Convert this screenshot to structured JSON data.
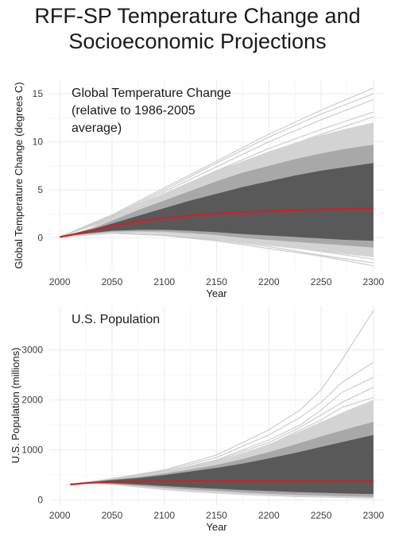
{
  "figure": {
    "title_line1": "RFF-SP Temperature Change and",
    "title_line2": "Socioeconomic Projections"
  },
  "colors": {
    "grid": "#ebebeb",
    "band_outer": "#d3d3d3",
    "band_mid": "#a8a8a8",
    "band_inner": "#595959",
    "trace": "#cccccc",
    "median": "#cc2222"
  },
  "chart_data": [
    {
      "type": "area",
      "title_lines": [
        "Global Temperature Change",
        "(relative to 1986-2005",
        "average)"
      ],
      "xlabel": "Year",
      "ylabel": "Global Temperature Change (degrees C)",
      "xlim": [
        1990,
        2310
      ],
      "ylim": [
        -3.5,
        16.5
      ],
      "xticks": [
        2000,
        2050,
        2100,
        2150,
        2200,
        2250,
        2300
      ],
      "yticks": [
        0,
        5,
        10,
        15
      ],
      "grid": true,
      "x": [
        2000,
        2010,
        2020,
        2030,
        2050,
        2075,
        2100,
        2125,
        2150,
        2175,
        2200,
        2225,
        2250,
        2275,
        2300
      ],
      "bands": [
        {
          "level": "outer",
          "upper": [
            0.1,
            0.35,
            0.7,
            1.1,
            2.1,
            3.3,
            4.6,
            5.8,
            7.0,
            8.0,
            9.0,
            9.9,
            10.7,
            11.4,
            12.0
          ],
          "lower": [
            0.1,
            0.2,
            0.3,
            0.4,
            0.55,
            0.55,
            0.45,
            0.2,
            -0.1,
            -0.5,
            -0.8,
            -1.1,
            -1.4,
            -1.7,
            -2.0
          ]
        },
        {
          "level": "middle",
          "upper": [
            0.1,
            0.33,
            0.65,
            0.95,
            1.8,
            2.9,
            3.9,
            4.9,
            5.9,
            6.8,
            7.5,
            8.2,
            8.8,
            9.3,
            9.7
          ],
          "lower": [
            0.1,
            0.22,
            0.35,
            0.45,
            0.65,
            0.7,
            0.65,
            0.5,
            0.3,
            0.0,
            -0.2,
            -0.4,
            -0.6,
            -0.8,
            -1.0
          ]
        },
        {
          "level": "inner",
          "upper": [
            0.1,
            0.3,
            0.6,
            0.85,
            1.5,
            2.3,
            3.1,
            3.9,
            4.6,
            5.3,
            5.9,
            6.5,
            7.0,
            7.4,
            7.8
          ],
          "lower": [
            0.1,
            0.24,
            0.38,
            0.52,
            0.75,
            0.85,
            0.85,
            0.75,
            0.6,
            0.4,
            0.25,
            0.1,
            -0.05,
            -0.2,
            -0.3
          ]
        }
      ],
      "median": [
        0.1,
        0.3,
        0.55,
        0.8,
        1.3,
        1.75,
        2.1,
        2.35,
        2.55,
        2.7,
        2.8,
        2.9,
        2.98,
        3.05,
        3.1
      ],
      "traces": [
        {
          "x": [
            2000,
            2050,
            2100,
            2150,
            2200,
            2250,
            2300
          ],
          "y": [
            0.1,
            2.4,
            5.2,
            8.0,
            10.8,
            13.3,
            15.6
          ]
        },
        {
          "x": [
            2000,
            2050,
            2100,
            2150,
            2200,
            2250,
            2300
          ],
          "y": [
            0.1,
            2.3,
            5.0,
            7.8,
            10.5,
            12.9,
            15.0
          ]
        },
        {
          "x": [
            2000,
            2050,
            2100,
            2150,
            2200,
            2250,
            2300
          ],
          "y": [
            0.1,
            2.2,
            4.8,
            7.4,
            10.0,
            12.3,
            14.4
          ]
        },
        {
          "x": [
            2000,
            2050,
            2100,
            2150,
            2200,
            2250,
            2300
          ],
          "y": [
            0.1,
            2.2,
            4.6,
            7.0,
            9.3,
            11.3,
            13.1
          ]
        },
        {
          "x": [
            2000,
            2050,
            2100,
            2150,
            2200,
            2250,
            2300
          ],
          "y": [
            0.1,
            2.1,
            4.4,
            6.7,
            8.9,
            10.8,
            12.6
          ]
        },
        {
          "x": [
            2000,
            2050,
            2100,
            2150,
            2200,
            2250,
            2300
          ],
          "y": [
            0.1,
            2.0,
            4.2,
            6.3,
            8.3,
            10.1,
            11.7
          ]
        },
        {
          "x": [
            2000,
            2050,
            2100,
            2150,
            2200,
            2250,
            2300
          ],
          "y": [
            0.1,
            0.5,
            0.3,
            -0.2,
            -0.9,
            -1.8,
            -2.6
          ]
        },
        {
          "x": [
            2000,
            2050,
            2100,
            2150,
            2200,
            2250,
            2300
          ],
          "y": [
            0.1,
            0.55,
            0.35,
            -0.1,
            -0.7,
            -1.4,
            -2.2
          ]
        },
        {
          "x": [
            2000,
            2050,
            2100,
            2150,
            2200,
            2250,
            2300
          ],
          "y": [
            0.1,
            0.5,
            0.25,
            -0.3,
            -1.1,
            -1.9,
            -2.9
          ]
        }
      ]
    },
    {
      "type": "area",
      "title_lines": [
        "U.S. Population"
      ],
      "xlabel": "Year",
      "ylabel": "U.S. Population (millions)",
      "xlim": [
        1990,
        2310
      ],
      "ylim": [
        -100,
        3880
      ],
      "xticks": [
        2000,
        2050,
        2100,
        2150,
        2200,
        2250,
        2300
      ],
      "yticks": [
        0,
        1000,
        2000,
        3000
      ],
      "grid": true,
      "x": [
        2010,
        2025,
        2050,
        2075,
        2100,
        2125,
        2150,
        2175,
        2200,
        2225,
        2250,
        2275,
        2300
      ],
      "bands": [
        {
          "level": "outer",
          "upper": [
            310,
            355,
            420,
            480,
            560,
            660,
            780,
            930,
            1120,
            1330,
            1560,
            1790,
            2000
          ],
          "lower": [
            310,
            340,
            300,
            250,
            200,
            160,
            130,
            100,
            80,
            60,
            50,
            40,
            30
          ]
        },
        {
          "level": "middle",
          "upper": [
            310,
            352,
            410,
            460,
            530,
            610,
            700,
            820,
            960,
            1110,
            1270,
            1420,
            1560
          ],
          "lower": [
            310,
            342,
            320,
            285,
            245,
            210,
            180,
            150,
            125,
            105,
            90,
            75,
            65
          ]
        },
        {
          "level": "inner",
          "upper": [
            310,
            350,
            400,
            440,
            500,
            570,
            640,
            730,
            830,
            940,
            1060,
            1180,
            1300
          ],
          "lower": [
            310,
            345,
            335,
            310,
            280,
            250,
            225,
            200,
            180,
            160,
            145,
            130,
            120
          ]
        }
      ],
      "median": [
        310,
        340,
        365,
        375,
        380,
        383,
        385,
        385,
        384,
        382,
        380,
        378,
        375
      ],
      "traces": [
        {
          "x": [
            2010,
            2050,
            2100,
            2150,
            2200,
            2230,
            2250,
            2270,
            2300
          ],
          "y": [
            310,
            430,
            600,
            900,
            1400,
            1800,
            2200,
            2800,
            3780
          ]
        },
        {
          "x": [
            2010,
            2050,
            2100,
            2150,
            2200,
            2230,
            2250,
            2270,
            2300
          ],
          "y": [
            310,
            425,
            580,
            850,
            1300,
            1650,
            1950,
            2350,
            2750
          ]
        },
        {
          "x": [
            2010,
            2050,
            2100,
            2150,
            2200,
            2230,
            2250,
            2270,
            2300
          ],
          "y": [
            310,
            420,
            560,
            800,
            1200,
            1500,
            1800,
            2150,
            2450
          ]
        },
        {
          "x": [
            2010,
            2050,
            2100,
            2150,
            2200,
            2230,
            2250,
            2270,
            2300
          ],
          "y": [
            310,
            420,
            550,
            780,
            1150,
            1450,
            1700,
            1950,
            2250
          ]
        },
        {
          "x": [
            2010,
            2050,
            2100,
            2150,
            2200,
            2230,
            2250,
            2270,
            2300
          ],
          "y": [
            310,
            415,
            540,
            760,
            1100,
            1400,
            1600,
            1850,
            2050
          ]
        },
        {
          "x": [
            2010,
            2050,
            2100,
            2150,
            2200,
            2230,
            2250,
            2270,
            2300
          ],
          "y": [
            310,
            415,
            535,
            740,
            1050,
            1300,
            1500,
            1700,
            1900
          ]
        },
        {
          "x": [
            2010,
            2050,
            2100,
            2150,
            2200,
            2230,
            2250,
            2270,
            2300
          ],
          "y": [
            310,
            410,
            520,
            700,
            980,
            1200,
            1380,
            1550,
            1700
          ]
        }
      ]
    }
  ]
}
